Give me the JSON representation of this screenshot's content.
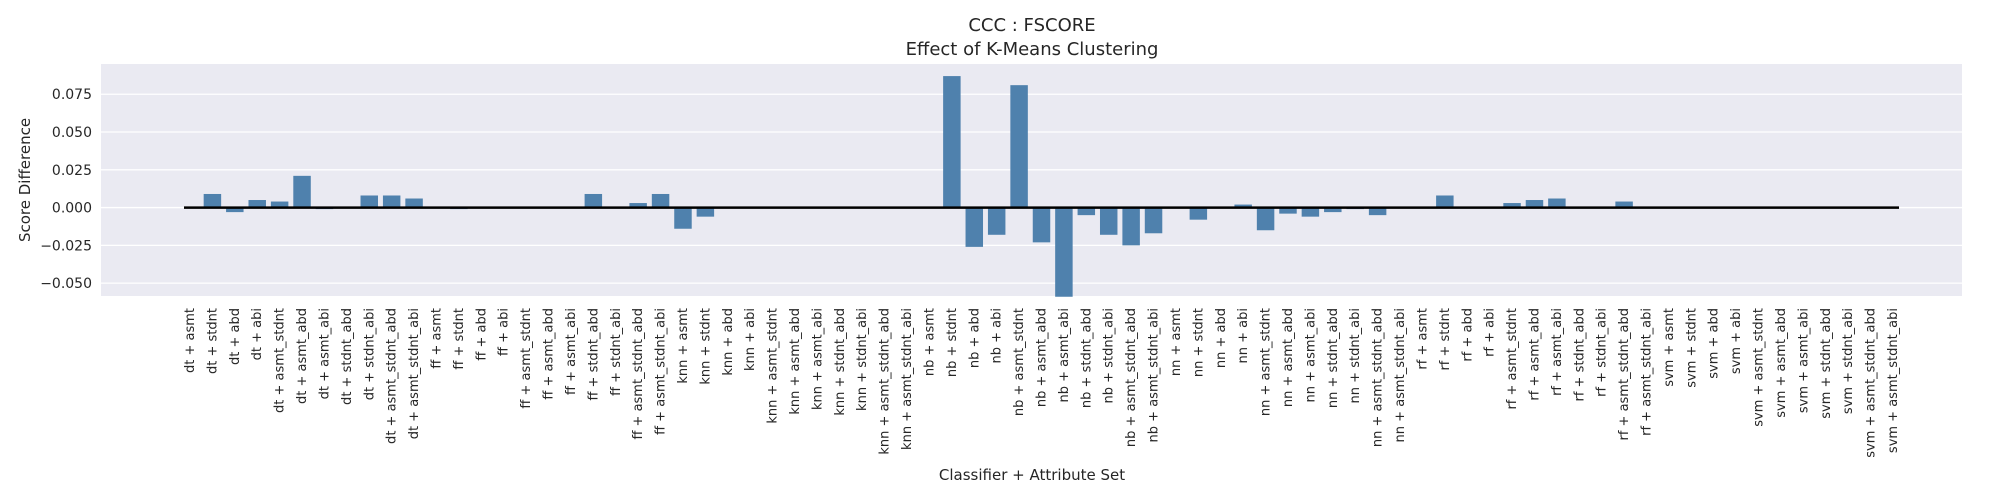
{
  "chart_data": {
    "type": "bar",
    "title": "CCC : FSCORE",
    "subtitle": "Effect of K-Means Clustering",
    "xlabel": "Classifier + Attribute Set",
    "ylabel": "Score Difference",
    "ylim": [
      -0.0585,
      0.095
    ],
    "yticks": [
      -0.05,
      -0.025,
      0.0,
      0.025,
      0.05,
      0.075
    ],
    "ytick_labels": [
      "−0.050",
      "−0.025",
      "0.000",
      "0.025",
      "0.050",
      "0.075"
    ],
    "grid": true,
    "legend": "none",
    "colors": {
      "bar": "#4f81ad",
      "background": "#eaeaf2",
      "grid": "#ffffff",
      "zero_line": "#000000"
    },
    "categories": [
      "dt + asmt",
      "dt + stdnt",
      "dt + abd",
      "dt + abi",
      "dt + asmt_stdnt",
      "dt + asmt_abd",
      "dt + asmt_abi",
      "dt + stdnt_abd",
      "dt + stdnt_abi",
      "dt + asmt_stdnt_abd",
      "dt + asmt_stdnt_abi",
      "ff + asmt",
      "ff + stdnt",
      "ff + abd",
      "ff + abi",
      "ff + asmt_stdnt",
      "ff + asmt_abd",
      "ff + asmt_abi",
      "ff + stdnt_abd",
      "ff + stdnt_abi",
      "ff + asmt_stdnt_abd",
      "ff + asmt_stdnt_abi",
      "knn + asmt",
      "knn + stdnt",
      "knn + abd",
      "knn + abi",
      "knn + asmt_stdnt",
      "knn + asmt_abd",
      "knn + asmt_abi",
      "knn + stdnt_abd",
      "knn + stdnt_abi",
      "knn + asmt_stdnt_abd",
      "knn + asmt_stdnt_abi",
      "nb + asmt",
      "nb + stdnt",
      "nb + abd",
      "nb + abi",
      "nb + asmt_stdnt",
      "nb + asmt_abd",
      "nb + asmt_abi",
      "nb + stdnt_abd",
      "nb + stdnt_abi",
      "nb + asmt_stdnt_abd",
      "nb + asmt_stdnt_abi",
      "nn + asmt",
      "nn + stdnt",
      "nn + abd",
      "nn + abi",
      "nn + asmt_stdnt",
      "nn + asmt_abd",
      "nn + asmt_abi",
      "nn + stdnt_abd",
      "nn + stdnt_abi",
      "nn + asmt_stdnt_abd",
      "nn + asmt_stdnt_abi",
      "rf + asmt",
      "rf + stdnt",
      "rf + abd",
      "rf + abi",
      "rf + asmt_stdnt",
      "rf + asmt_abd",
      "rf + asmt_abi",
      "rf + stdnt_abd",
      "rf + stdnt_abi",
      "rf + asmt_stdnt_abd",
      "rf + asmt_stdnt_abi",
      "svm + asmt",
      "svm + stdnt",
      "svm + abd",
      "svm + abi",
      "svm + asmt_stdnt",
      "svm + asmt_abd",
      "svm + asmt_abi",
      "svm + stdnt_abd",
      "svm + stdnt_abi",
      "svm + asmt_stdnt_abd",
      "svm + asmt_stdnt_abi"
    ],
    "values": [
      0.0,
      0.009,
      -0.003,
      0.005,
      0.004,
      0.021,
      -0.001,
      0.0,
      0.008,
      0.008,
      0.006,
      0.0,
      -0.001,
      0.0,
      0.0,
      0.0,
      0.0,
      0.0,
      0.009,
      0.0,
      0.003,
      0.009,
      -0.014,
      -0.006,
      0.0,
      0.0,
      0.0,
      0.0,
      0.0,
      0.0,
      0.0,
      0.0,
      0.0,
      0.0,
      0.087,
      -0.026,
      -0.018,
      0.081,
      -0.023,
      -0.059,
      -0.005,
      -0.018,
      -0.025,
      -0.017,
      0.0,
      -0.008,
      0.0,
      0.002,
      -0.015,
      -0.004,
      -0.006,
      -0.003,
      -0.001,
      -0.005,
      0.0,
      0.0,
      0.008,
      0.0,
      0.0,
      0.003,
      0.005,
      0.006,
      0.0,
      0.0,
      0.004,
      0.0,
      0.0,
      0.0,
      0.0,
      0.0,
      0.0,
      0.0,
      0.0,
      0.0,
      0.0,
      0.0,
      0.0
    ]
  }
}
